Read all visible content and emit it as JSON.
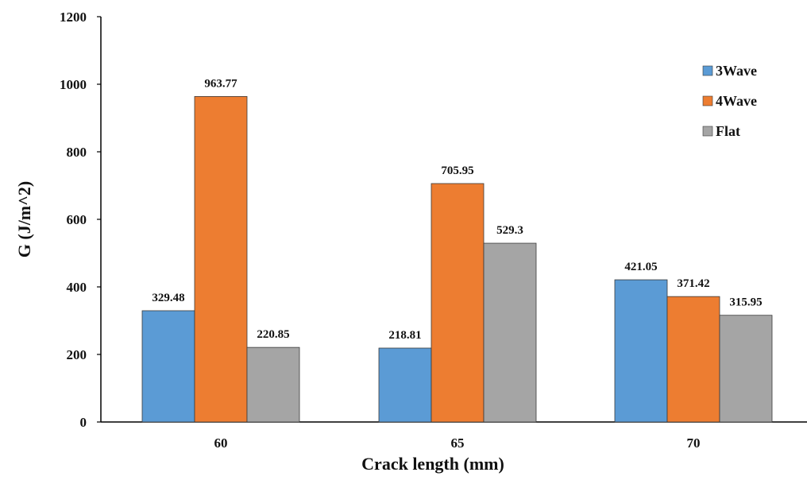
{
  "chart_data": {
    "type": "bar",
    "title": "",
    "xlabel": "Crack length (mm)",
    "ylabel": "G (J/m^2)",
    "categories": [
      "60",
      "65",
      "70"
    ],
    "series": [
      {
        "name": "3Wave",
        "color": "#5b9bd5",
        "values": [
          329.48,
          218.81,
          421.05
        ],
        "labels": [
          "329.48",
          "218.81",
          "421.05"
        ]
      },
      {
        "name": "4Wave",
        "color": "#ed7d31",
        "values": [
          963.77,
          705.95,
          371.42
        ],
        "labels": [
          "963.77",
          "705.95",
          "371.42"
        ]
      },
      {
        "name": "Flat",
        "color": "#a5a5a5",
        "values": [
          220.85,
          529.3,
          315.95
        ],
        "labels": [
          "220.85",
          "529.3",
          "315.95"
        ]
      }
    ],
    "ylim": [
      0,
      1200
    ],
    "yticks": [
      "0",
      "200",
      "400",
      "600",
      "800",
      "1000",
      "1200"
    ],
    "grid": false,
    "legend_position": "top-right"
  }
}
